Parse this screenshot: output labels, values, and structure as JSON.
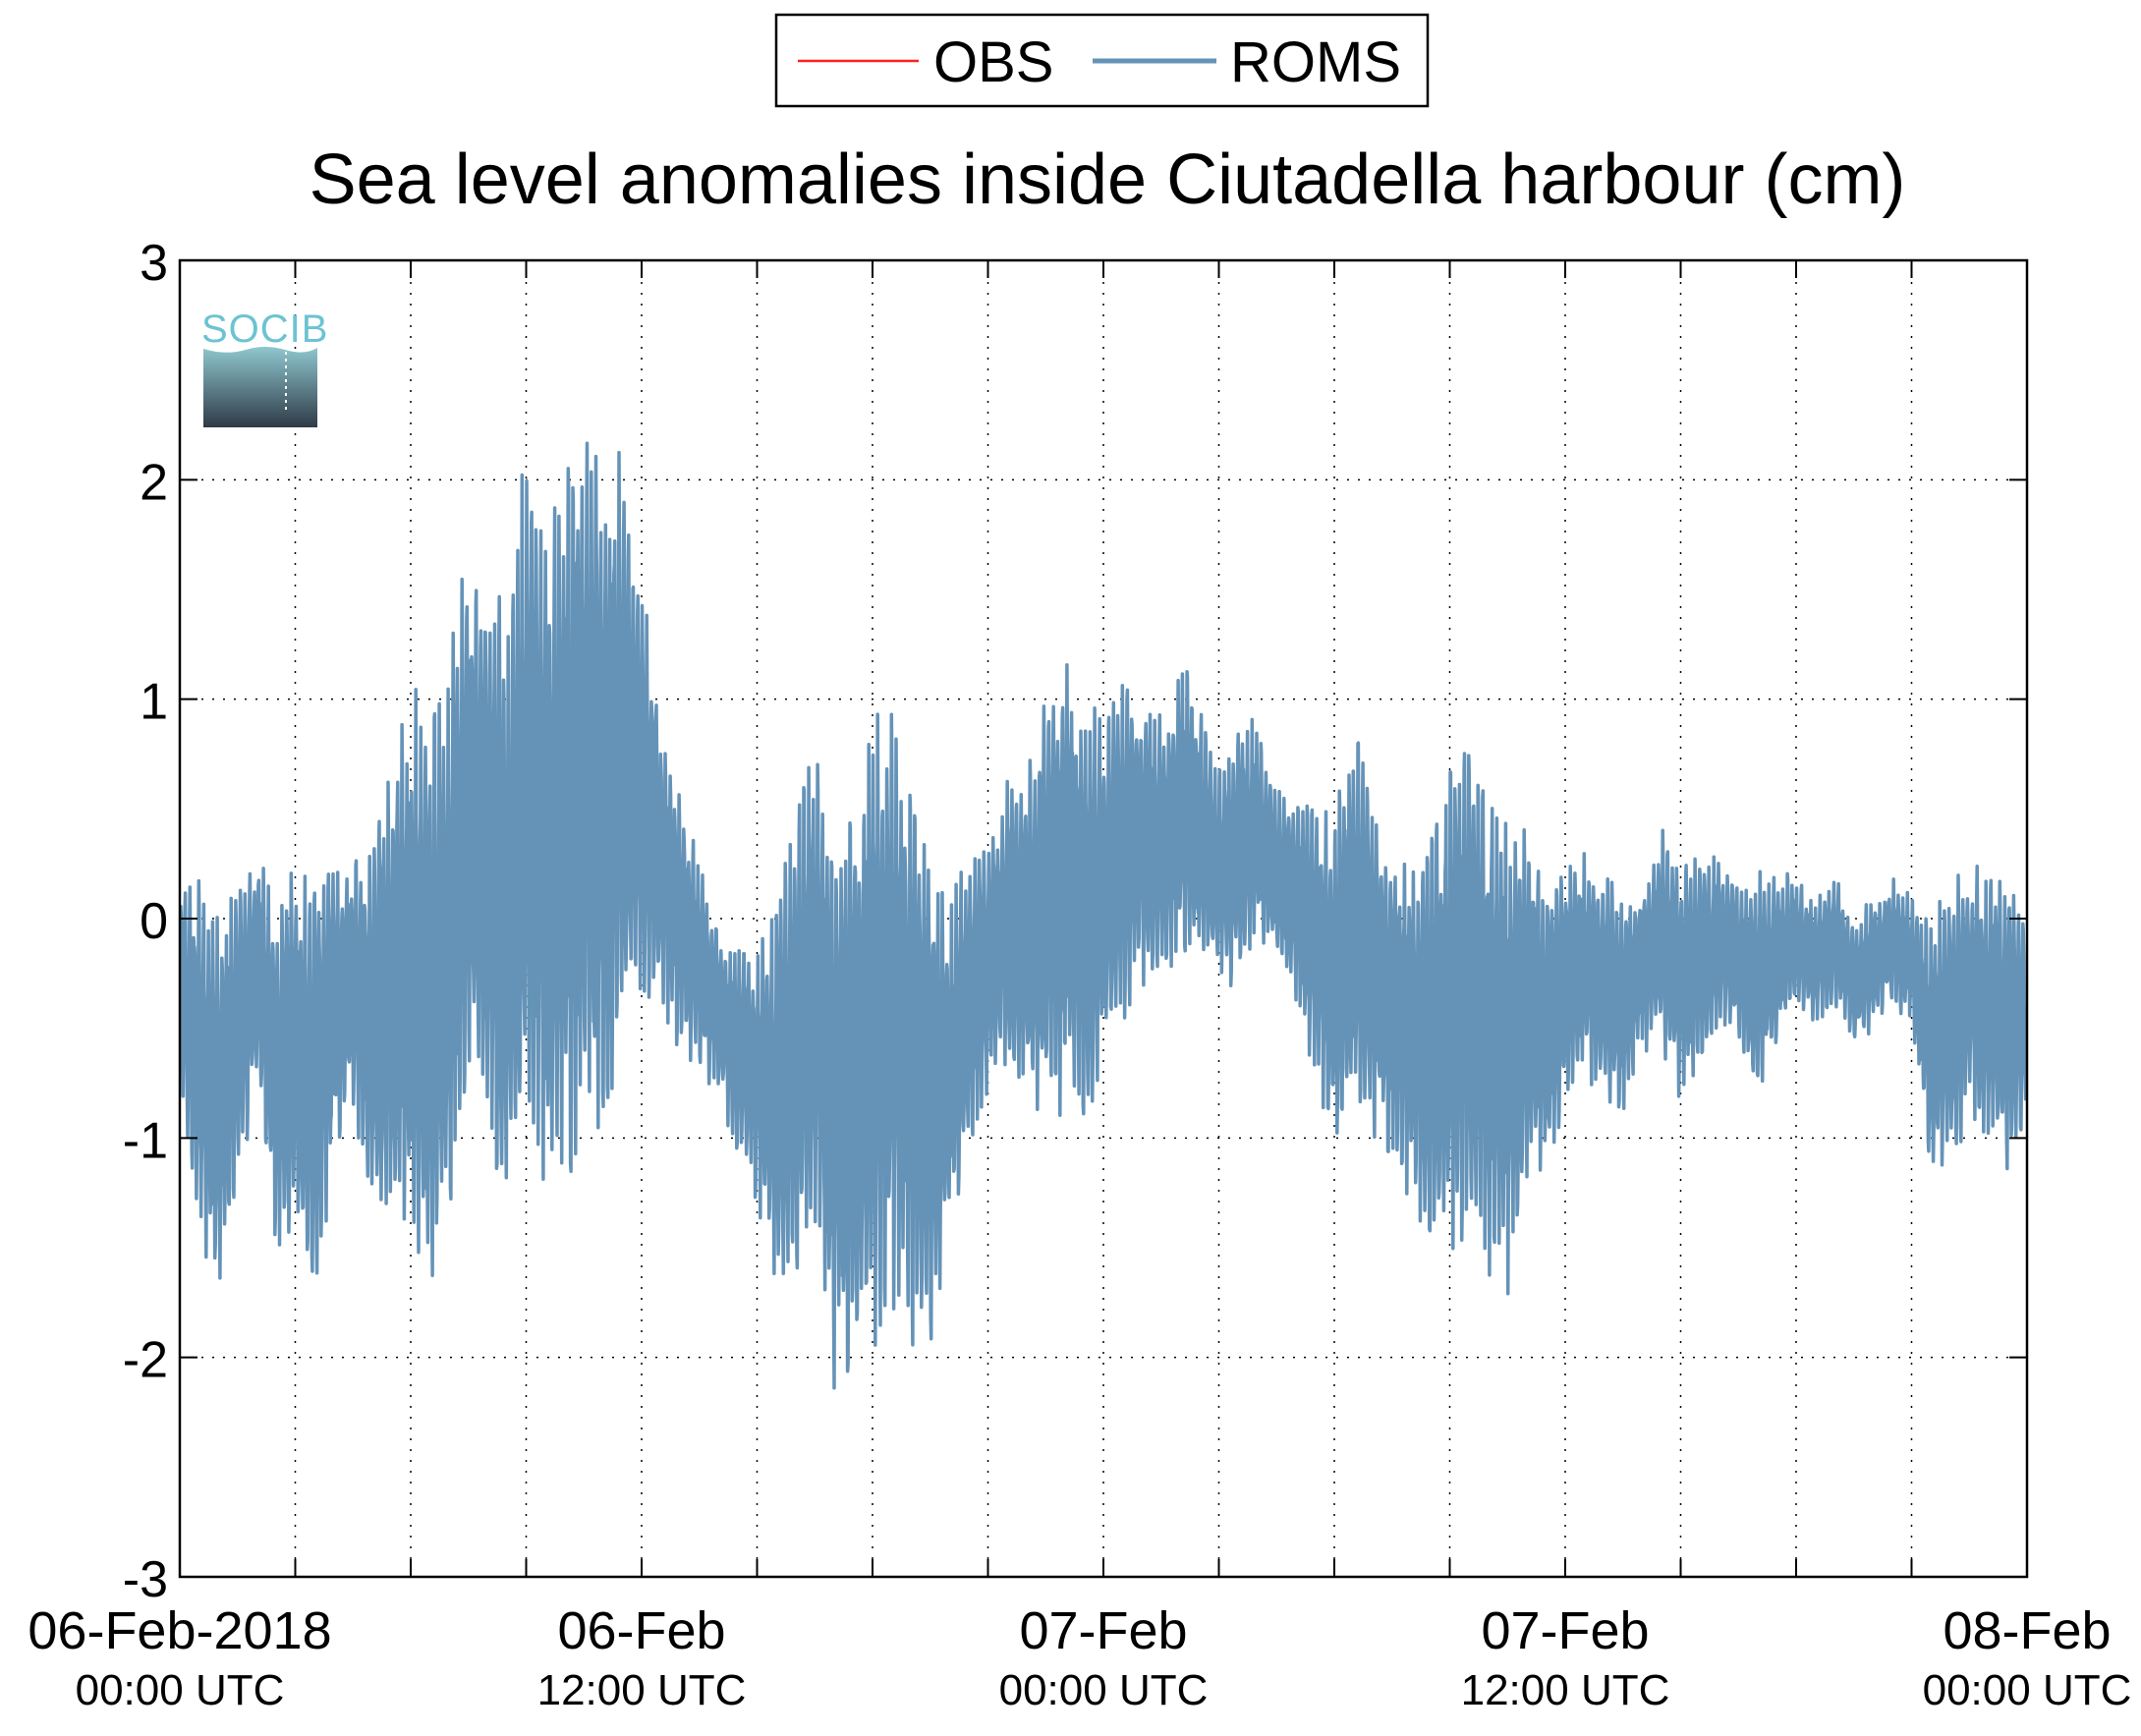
{
  "chart_data": {
    "type": "line",
    "title": "Sea level anomalies inside Ciutadella harbour (cm)",
    "xlabel": "",
    "ylabel": "",
    "ylim": [
      -3,
      3
    ],
    "yticks": [
      3,
      2,
      1,
      0,
      -1,
      -2,
      -3
    ],
    "yticklabels": [
      "3",
      "2",
      "1",
      "0",
      "-1",
      "-2",
      "-3"
    ],
    "xlim_hours": [
      0,
      48
    ],
    "x_unit": "hours since 06-Feb-2018 00:00 UTC",
    "xgrid_hours": [
      3,
      6,
      9,
      12,
      15,
      18,
      21,
      24,
      27,
      30,
      33,
      36,
      39,
      42,
      45
    ],
    "xticks": [
      {
        "hour": 0,
        "date": "06-Feb-2018",
        "time": "00:00 UTC"
      },
      {
        "hour": 12,
        "date": "06-Feb",
        "time": "12:00 UTC"
      },
      {
        "hour": 24,
        "date": "07-Feb",
        "time": "00:00 UTC"
      },
      {
        "hour": 36,
        "date": "07-Feb",
        "time": "12:00 UTC"
      },
      {
        "hour": 48,
        "date": "08-Feb",
        "time": "00:00 UTC"
      }
    ],
    "grid": true,
    "legend_position": "top-center",
    "series": [
      {
        "name": "OBS",
        "color": "#ff2020",
        "x": [],
        "y": []
      },
      {
        "name": "ROMS",
        "color": "#6593b8",
        "x": [
          0,
          0.5,
          1,
          1.5,
          2,
          2.5,
          3,
          3.5,
          4,
          4.5,
          5,
          5.5,
          6,
          6.5,
          7,
          7.5,
          8,
          8.5,
          9,
          9.5,
          10,
          10.5,
          11,
          11.5,
          12,
          12.5,
          13,
          13.5,
          14,
          14.5,
          15,
          15.5,
          16,
          16.5,
          17,
          17.5,
          18,
          18.5,
          19,
          19.5,
          20,
          20.5,
          21,
          21.5,
          22,
          22.5,
          23,
          23.5,
          24,
          24.5,
          25,
          25.5,
          26,
          26.5,
          27,
          27.5,
          28,
          28.5,
          29,
          29.5,
          30,
          30.5,
          31,
          31.5,
          32,
          32.5,
          33,
          33.5,
          34,
          34.5,
          35,
          35.5,
          36,
          36.5,
          37,
          37.5,
          38,
          38.5,
          39,
          39.5,
          40,
          40.5,
          41,
          41.5,
          42,
          42.5,
          43,
          43.5,
          44,
          44.5,
          45,
          45.5,
          46,
          46.5,
          47,
          47.5,
          48
        ],
        "y": [
          -0.3,
          -0.6,
          -0.9,
          -0.5,
          -0.2,
          -0.7,
          -0.6,
          -0.8,
          -0.4,
          -0.3,
          -0.5,
          -0.3,
          -0.2,
          -0.4,
          -0.1,
          0.5,
          0.3,
          0.0,
          0.6,
          0.2,
          0.4,
          0.7,
          0.5,
          0.8,
          0.6,
          0.3,
          0.0,
          -0.2,
          -0.4,
          -0.6,
          -0.7,
          -0.8,
          -0.6,
          -0.3,
          -0.9,
          -0.7,
          -0.5,
          -0.4,
          -0.6,
          -0.8,
          -0.7,
          -0.4,
          -0.2,
          0.0,
          -0.1,
          0.1,
          0.2,
          0.0,
          0.1,
          0.3,
          0.4,
          0.3,
          0.5,
          0.4,
          0.2,
          0.3,
          0.4,
          0.2,
          0.1,
          -0.1,
          -0.3,
          0.0,
          -0.2,
          -0.4,
          -0.5,
          -0.6,
          -0.4,
          -0.3,
          -0.5,
          -0.6,
          -0.4,
          -0.5,
          -0.3,
          -0.2,
          -0.3,
          -0.4,
          -0.2,
          -0.1,
          -0.3,
          -0.2,
          -0.1,
          -0.2,
          -0.3,
          -0.2,
          -0.1,
          -0.2,
          -0.1,
          -0.3,
          -0.2,
          -0.1,
          -0.2,
          -0.6,
          -0.5,
          -0.3,
          -0.4,
          -0.5,
          -0.4
        ],
        "envelope": [
          0.5,
          0.8,
          0.9,
          0.7,
          0.6,
          0.8,
          0.9,
          1.0,
          0.7,
          0.6,
          0.9,
          1.1,
          1.3,
          1.4,
          1.3,
          1.2,
          1.3,
          1.5,
          1.6,
          1.7,
          1.7,
          1.8,
          1.6,
          1.4,
          1.0,
          0.7,
          0.6,
          0.5,
          0.4,
          0.5,
          0.6,
          0.9,
          1.2,
          1.1,
          1.3,
          1.4,
          1.5,
          1.4,
          1.3,
          1.2,
          0.8,
          0.7,
          0.6,
          0.7,
          0.8,
          1.0,
          1.1,
          1.0,
          0.9,
          0.8,
          0.7,
          0.6,
          0.7,
          0.6,
          0.5,
          0.6,
          0.5,
          0.4,
          0.5,
          0.6,
          0.8,
          0.9,
          0.8,
          0.7,
          0.8,
          1.0,
          1.1,
          1.2,
          1.2,
          1.1,
          0.9,
          0.7,
          0.6,
          0.5,
          0.6,
          0.5,
          0.4,
          0.5,
          0.6,
          0.5,
          0.4,
          0.4,
          0.5,
          0.4,
          0.3,
          0.3,
          0.3,
          0.3,
          0.3,
          0.3,
          0.3,
          0.6,
          0.7,
          0.6,
          0.6,
          0.7,
          0.5
        ]
      }
    ]
  },
  "logo": {
    "text": "SOCIB"
  }
}
